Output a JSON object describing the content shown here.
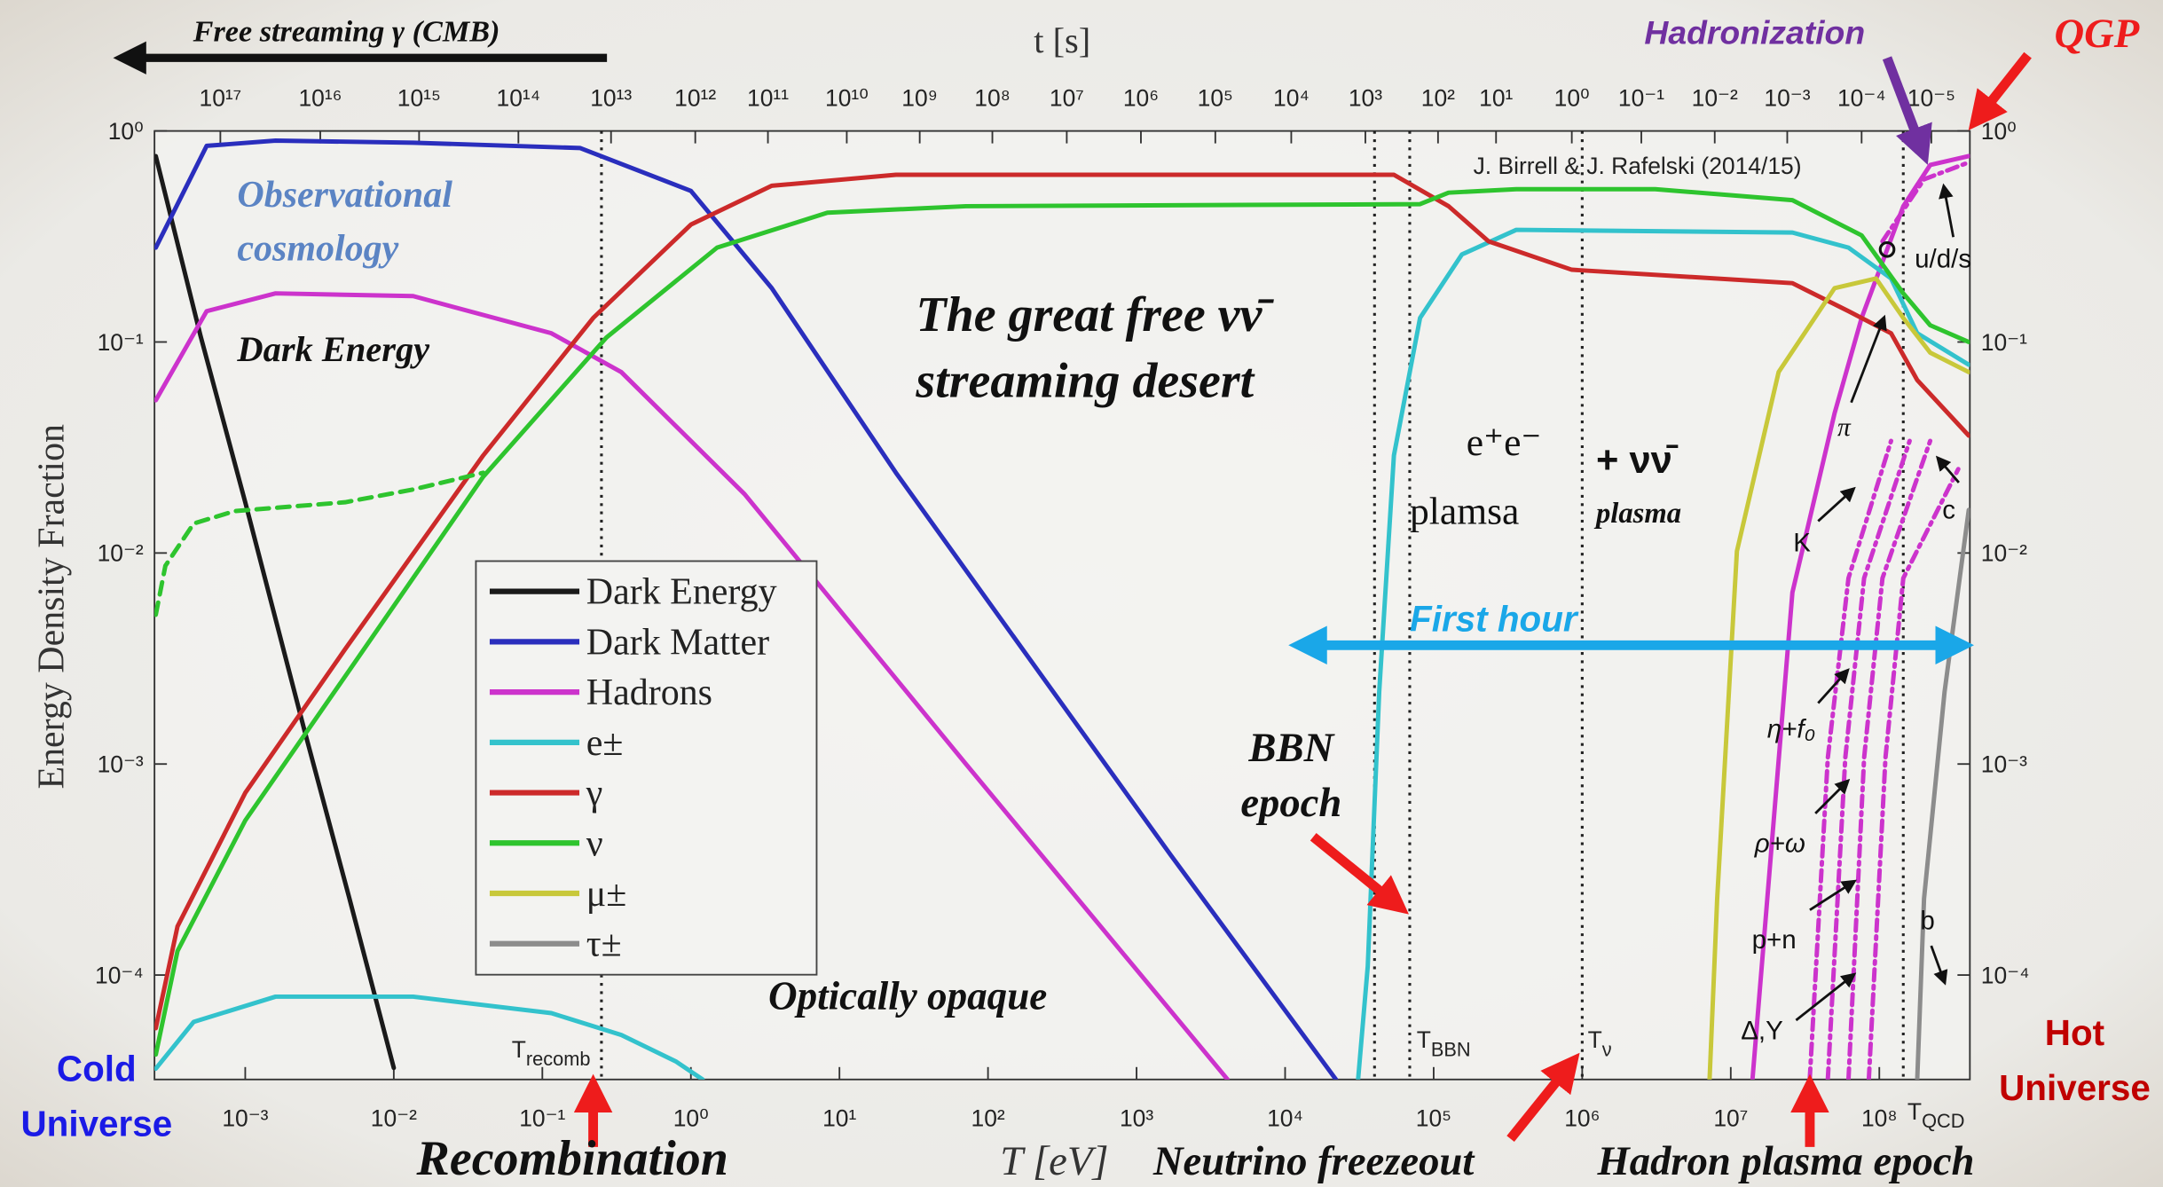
{
  "chart_data": {
    "type": "line",
    "x_label": "T [eV]",
    "y_label": "Energy Density Fraction",
    "xscale": "log",
    "yscale": "log",
    "xlim": [
      0.000245,
      407000000
    ],
    "ylim": [
      3.2e-05,
      1
    ],
    "xticks": [
      {
        "value": 0.001,
        "label": "10⁻³"
      },
      {
        "value": 0.01,
        "label": "10⁻²"
      },
      {
        "value": 0.1,
        "label": "10⁻¹"
      },
      {
        "value": 1,
        "label": "10⁰"
      },
      {
        "value": 10,
        "label": "10¹"
      },
      {
        "value": 100,
        "label": "10²"
      },
      {
        "value": 1000,
        "label": "10³"
      },
      {
        "value": 10000,
        "label": "10⁴"
      },
      {
        "value": 100000,
        "label": "10⁵"
      },
      {
        "value": 1000000,
        "label": "10⁶"
      },
      {
        "value": 10000000,
        "label": "10⁷"
      },
      {
        "value": 100000000,
        "label": "10⁸"
      }
    ],
    "yticks": [
      {
        "value": 1,
        "label": "10⁰"
      },
      {
        "value": 0.1,
        "label": "10⁻¹"
      },
      {
        "value": 0.01,
        "label": "10⁻²"
      },
      {
        "value": 0.001,
        "label": "10⁻³"
      },
      {
        "value": 0.0001,
        "label": "10⁻⁴"
      }
    ],
    "top_axis": {
      "label": "t [s]",
      "ticks": [
        {
          "value": 1e+17,
          "label": "10¹⁷",
          "T": 0.00068
        },
        {
          "value": 1e+16,
          "label": "10¹⁶",
          "T": 0.0032
        },
        {
          "value": 1000000000000000.0,
          "label": "10¹⁵",
          "T": 0.0148
        },
        {
          "value": 100000000000000.0,
          "label": "10¹⁴",
          "T": 0.069
        },
        {
          "value": 10000000000000.0,
          "label": "10¹³",
          "T": 0.29
        },
        {
          "value": 1000000000000.0,
          "label": "10¹²",
          "T": 1.07
        },
        {
          "value": 100000000000.0,
          "label": "10¹¹",
          "T": 3.3
        },
        {
          "value": 10000000000.0,
          "label": "10¹⁰",
          "T": 11.2
        },
        {
          "value": 1000000000.0,
          "label": "10⁹",
          "T": 34.7
        },
        {
          "value": 100000000.0,
          "label": "10⁸",
          "T": 107
        },
        {
          "value": 10000000.0,
          "label": "10⁷",
          "T": 339
        },
        {
          "value": 1000000.0,
          "label": "10⁶",
          "T": 1070
        },
        {
          "value": 100000.0,
          "label": "10⁵",
          "T": 3390
        },
        {
          "value": 10000.0,
          "label": "10⁴",
          "T": 11000
        },
        {
          "value": 1000,
          "label": "10³",
          "T": 34700
        },
        {
          "value": 100,
          "label": "10²",
          "T": 107000
        },
        {
          "value": 10,
          "label": "10¹",
          "T": 263000
        },
        {
          "value": 1,
          "label": "10⁰",
          "T": 851000
        },
        {
          "value": 0.1,
          "label": "10⁻¹",
          "T": 2500000
        },
        {
          "value": 0.01,
          "label": "10⁻²",
          "T": 7800000
        },
        {
          "value": 0.001,
          "label": "10⁻³",
          "T": 24000000
        },
        {
          "value": 0.0001,
          "label": "10⁻⁴",
          "T": 76000000
        },
        {
          "value": 1e-05,
          "label": "10⁻⁵",
          "T": 224000000
        }
      ]
    },
    "legend": "inside-left",
    "series": [
      {
        "name": "Dark Energy",
        "color": "#1a1a1a",
        "x": [
          0.00025,
          0.0005,
          0.001,
          0.0025,
          0.005,
          0.01
        ],
        "values": [
          0.76,
          0.107,
          0.0174,
          0.00145,
          0.000234,
          3.63e-05
        ]
      },
      {
        "name": "Dark Matter",
        "color": "#2a2ebd",
        "x": [
          0.00025,
          0.00055,
          0.0016,
          0.0135,
          0.18,
          1,
          3.5,
          24,
          200,
          1700,
          22000
        ],
        "values": [
          0.28,
          0.85,
          0.9,
          0.88,
          0.83,
          0.52,
          0.18,
          0.024,
          0.003,
          0.00037,
          3.2e-05
        ]
      },
      {
        "name": "Hadrons",
        "color": "#cc33cc",
        "x": [
          0.00025,
          0.00055,
          0.0016,
          0.0135,
          0.115,
          0.34,
          2.3,
          71,
          4100,
          100000,
          14000000,
          26000000,
          50000000,
          76000000,
          145000000,
          220000000,
          400000000
        ],
        "values": [
          0.053,
          0.14,
          0.17,
          0.165,
          0.11,
          0.072,
          0.019,
          0.001,
          3.2e-05,
          null,
          3.2e-05,
          0.0065,
          0.046,
          0.13,
          0.44,
          0.69,
          0.76
        ]
      },
      {
        "name": "e±",
        "color": "#33c2cc",
        "x": [
          0.00025,
          0.00045,
          0.0016,
          0.0135,
          0.115,
          0.34,
          0.79,
          1.2,
          1000,
          31000,
          36000,
          43000,
          54000,
          81000,
          155000,
          360000,
          26000000,
          62000000,
          120000000,
          180000000,
          400000000
        ],
        "values": [
          3.6e-05,
          6e-05,
          7.9e-05,
          7.9e-05,
          6.6e-05,
          5.2e-05,
          3.9e-05,
          3.2e-05,
          null,
          3.2e-05,
          0.00011,
          0.0022,
          0.029,
          0.13,
          0.26,
          0.34,
          0.33,
          0.28,
          0.2,
          0.11,
          0.078
        ]
      },
      {
        "name": "γ",
        "color": "#cc2a2a",
        "x": [
          0.00025,
          0.00035,
          0.001,
          0.0047,
          0.04,
          0.22,
          1,
          3.5,
          24,
          54000,
          126000,
          234000,
          850000,
          26000000,
          62000000,
          120000000,
          180000000,
          400000000
        ],
        "values": [
          5.6e-05,
          0.00017,
          0.00073,
          0.0035,
          0.029,
          0.13,
          0.36,
          0.55,
          0.62,
          0.62,
          0.44,
          0.3,
          0.22,
          0.19,
          0.14,
          0.11,
          0.066,
          0.036
        ]
      },
      {
        "name": "ν",
        "color": "#2ec42e",
        "x": [
          0.00025,
          0.00035,
          0.001,
          0.0047,
          0.04,
          0.27,
          1.5,
          8.3,
          71,
          81000,
          126000,
          360000,
          3100000,
          26000000,
          76000000,
          145000000,
          220000000,
          400000000
        ],
        "values": [
          4.2e-05,
          0.00013,
          0.00054,
          0.0026,
          0.023,
          0.105,
          0.28,
          0.41,
          0.44,
          0.45,
          0.51,
          0.53,
          0.53,
          0.47,
          0.32,
          0.17,
          0.12,
          0.1
        ]
      },
      {
        "name": "μ±",
        "color": "#c8c83a",
        "x": [
          7200000,
          8100000,
          11000000,
          21000000,
          50000000,
          95000000,
          145000000,
          220000000,
          400000000
        ],
        "values": [
          3.2e-05,
          0.00023,
          0.0102,
          0.072,
          0.18,
          0.2,
          0.13,
          0.089,
          0.072
        ]
      },
      {
        "name": "τ±",
        "color": "#8c8c8c",
        "x": [
          180000000,
          200000000,
          275000000,
          400000000
        ],
        "values": [
          3.2e-05,
          0.00023,
          0.0022,
          0.016
        ]
      },
      {
        "color": "#2ec42e",
        "dash": "dashed",
        "x": [
          0.00025,
          0.00029,
          0.00045,
          0.00085,
          0.0047,
          0.0135,
          0.04
        ],
        "values": [
          0.0051,
          0.0087,
          0.0138,
          0.0158,
          0.0174,
          0.02,
          0.024
        ]
      },
      {
        "color": "#cc33cc",
        "dash": "dashdot",
        "x": [
          34000000,
          45000000,
          62000000,
          120000000
        ],
        "values": [
          3.2e-05,
          0.00107,
          0.0076,
          0.034
        ]
      },
      {
        "color": "#cc33cc",
        "dash": "dashdot",
        "x": [
          45000000,
          59000000,
          79000000,
          160000000
        ],
        "values": [
          3.2e-05,
          0.00107,
          0.0076,
          0.034
        ]
      },
      {
        "color": "#cc33cc",
        "dash": "dashdot",
        "x": [
          62000000,
          79000000,
          105000000,
          220000000
        ],
        "values": [
          3.2e-05,
          0.00107,
          0.0076,
          0.034
        ]
      },
      {
        "color": "#cc33cc",
        "dash": "dashdot",
        "x": [
          85000000,
          110000000,
          145000000,
          340000000
        ],
        "values": [
          3.2e-05,
          0.00107,
          0.0076,
          0.025
        ]
      },
      {
        "color": "#cc33cc",
        "dash": "dashdot",
        "x": [
          105000000,
          200000000,
          400000000
        ],
        "values": [
          0.3,
          0.59,
          0.71
        ]
      }
    ],
    "vlines": [
      {
        "value": 0.25,
        "label": "T",
        "sub": "recomb"
      },
      {
        "value": 40000
      },
      {
        "value": 69000,
        "label": "T",
        "sub": "BBN"
      },
      {
        "value": 1000000,
        "label": "T",
        "sub": "ν"
      },
      {
        "value": 145000000,
        "label": "T",
        "sub": "QCD"
      }
    ]
  },
  "annotations": {
    "free_streaming": "Free streaming γ (CMB)",
    "hadronization": "Hadronization",
    "qgp": "QGP",
    "credit": "J. Birrell & J. Rafelski (2014/15)",
    "observational": [
      "Observational",
      "cosmology"
    ],
    "dark_energy": "Dark Energy",
    "desert": [
      "The great free νν̄",
      "streaming desert"
    ],
    "ee": "e⁺e⁻",
    "plamsa": "plamsa",
    "nunu": "+ νν̄",
    "plasma": "plasma",
    "first_hour": "First hour",
    "bbn": [
      "BBN",
      "epoch"
    ],
    "opaque": "Optically opaque",
    "recombination": "Recombination",
    "freezeout": "Neutrino freezeout",
    "hadron_epoch": "Hadron plasma epoch",
    "cold": [
      "Cold",
      "Universe"
    ],
    "hot": [
      "Hot",
      "Universe"
    ],
    "particles": {
      "uds": "u/d/s",
      "pi": "π",
      "K": "K",
      "c": "c",
      "eta": "η+f₀",
      "rho": "ρ+ω",
      "pn": "p+n",
      "delta": "Δ,Y",
      "b": "b"
    }
  }
}
